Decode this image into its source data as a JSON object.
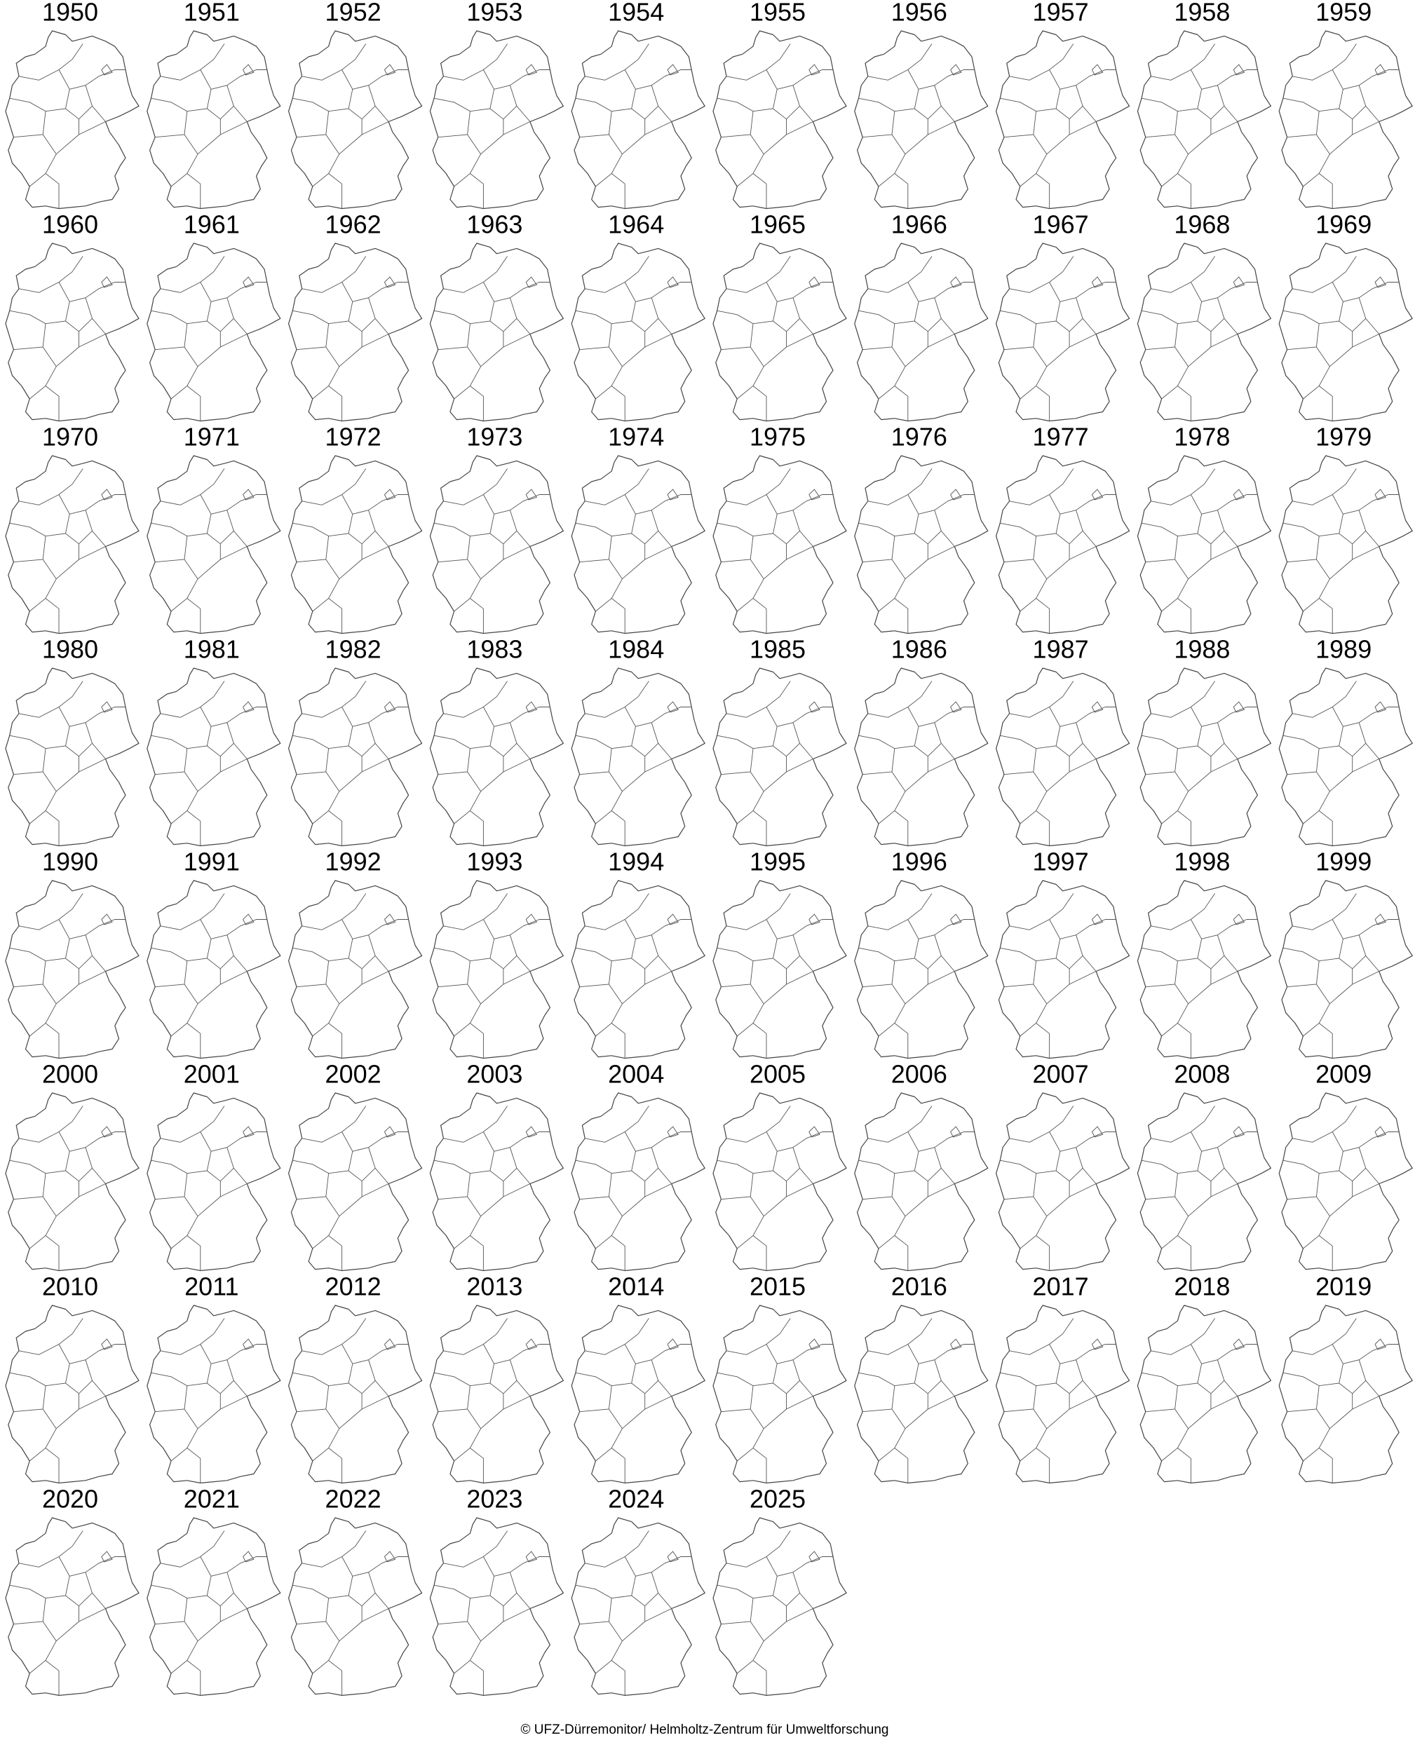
{
  "maps": {
    "years": [
      "1950",
      "1951",
      "1952",
      "1953",
      "1954",
      "1955",
      "1956",
      "1957",
      "1958",
      "1959",
      "1960",
      "1961",
      "1962",
      "1963",
      "1964",
      "1965",
      "1966",
      "1967",
      "1968",
      "1969",
      "1970",
      "1971",
      "1972",
      "1973",
      "1974",
      "1975",
      "1976",
      "1977",
      "1978",
      "1979",
      "1980",
      "1981",
      "1982",
      "1983",
      "1984",
      "1985",
      "1986",
      "1987",
      "1988",
      "1989",
      "1990",
      "1991",
      "1992",
      "1993",
      "1994",
      "1995",
      "1996",
      "1997",
      "1998",
      "1999",
      "2000",
      "2001",
      "2002",
      "2003",
      "2004",
      "2005",
      "2006",
      "2007",
      "2008",
      "2009",
      "2010",
      "2011",
      "2012",
      "2013",
      "2014",
      "2015",
      "2016",
      "2017",
      "2018",
      "2019",
      "2020",
      "2021",
      "2022",
      "2023",
      "2024",
      "2025"
    ]
  },
  "credit": "© UFZ-Dürremonitor/ Helmholtz-Zentrum für Umweltforschung"
}
